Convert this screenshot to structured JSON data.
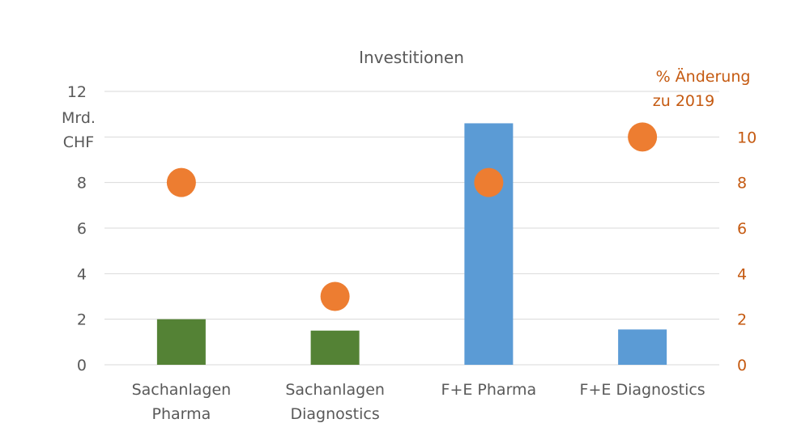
{
  "chart_data": {
    "type": "bar",
    "title": "Investitionen",
    "categories": [
      [
        "Sachanlagen",
        "Pharma"
      ],
      [
        "Sachanlagen",
        "Diagnostics"
      ],
      [
        "F+E Pharma"
      ],
      [
        "F+E Diagnostics"
      ]
    ],
    "y_left": {
      "label_lines": [
        "Mrd.",
        "CHF"
      ],
      "ylim": [
        0,
        12
      ],
      "ticks": [
        0,
        2,
        4,
        6,
        8,
        12
      ]
    },
    "y_right": {
      "label_lines": [
        "% Änderung",
        "zu 2019"
      ],
      "ylim": [
        0,
        12
      ],
      "ticks": [
        0,
        2,
        4,
        6,
        8,
        10
      ]
    },
    "grid": true,
    "series": [
      {
        "type": "bar",
        "axis": "left",
        "values": [
          2.0,
          1.5,
          10.6,
          1.55
        ],
        "colors": [
          "#548235",
          "#548235",
          "#5B9BD5",
          "#5B9BD5"
        ]
      },
      {
        "type": "scatter",
        "axis": "right",
        "values": [
          8.0,
          3.0,
          8.0,
          10.0
        ],
        "color": "#ED7D31"
      }
    ]
  }
}
